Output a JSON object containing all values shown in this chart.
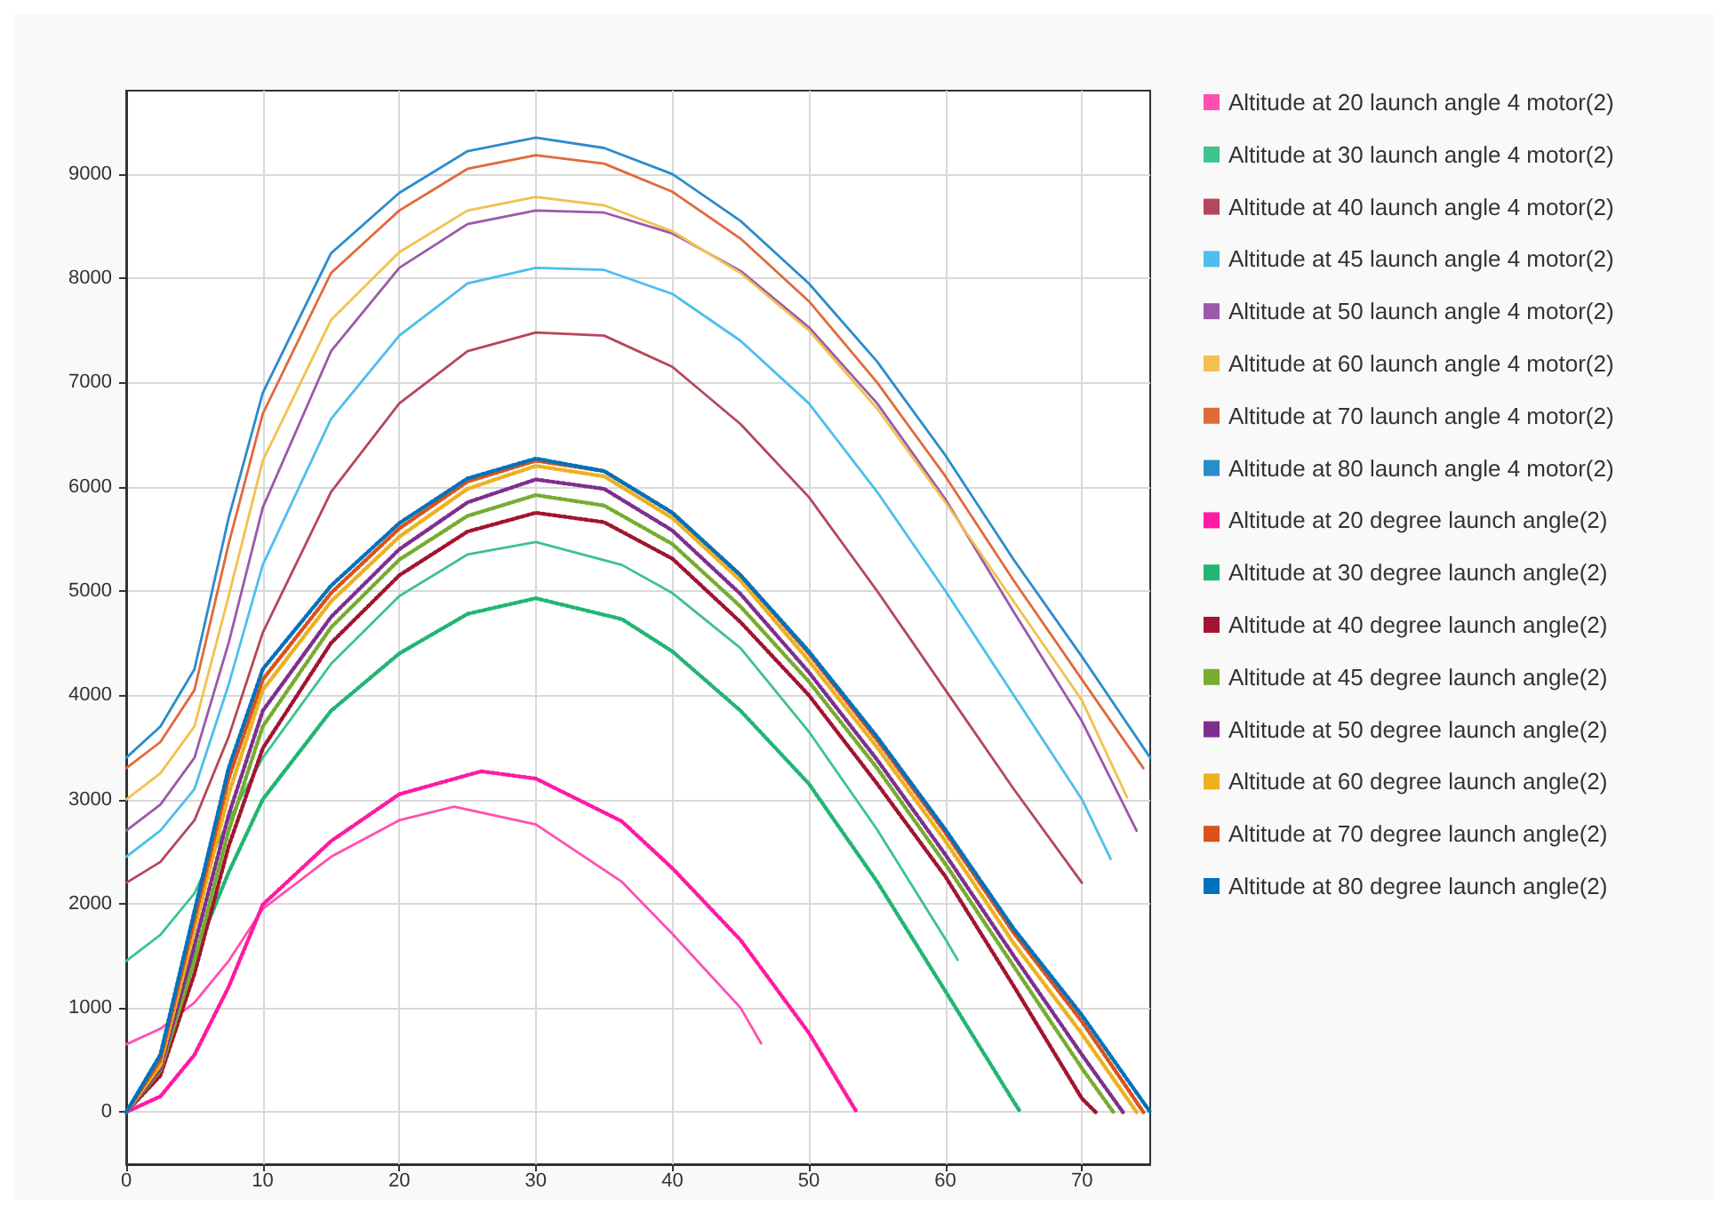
{
  "chart_data": {
    "type": "line",
    "xlim": [
      0,
      75
    ],
    "xticks": [
      0,
      10,
      20,
      30,
      40,
      50,
      60,
      70
    ],
    "ylim": [
      -500,
      9800
    ],
    "yticks": [
      0,
      1000,
      2000,
      3000,
      4000,
      5000,
      6000,
      7000,
      8000,
      9000
    ],
    "grid": true,
    "legend": "right",
    "marker": "none",
    "series": [
      {
        "name": "Altitude at 20 launch angle 4 motor(2)",
        "color": "#ff4fb0",
        "line_style": "solid",
        "x": [
          0,
          2.5,
          5,
          7.5,
          10,
          15,
          20,
          24,
          30,
          36.3,
          40,
          45,
          46.5
        ],
        "values": [
          650,
          800,
          1050,
          1450,
          1950,
          2450,
          2800,
          2930,
          2760,
          2210,
          1710,
          1000,
          660
        ]
      },
      {
        "name": "Altitude at 30 launch angle 4 motor(2)",
        "color": "#3cc48a",
        "line_style": "solid",
        "x": [
          0,
          2.5,
          5,
          7.5,
          10,
          15,
          20,
          25,
          30,
          36.3,
          40,
          45,
          50,
          55,
          60,
          60.9
        ],
        "values": [
          1450,
          1700,
          2100,
          2800,
          3400,
          4300,
          4950,
          5350,
          5470,
          5250,
          4980,
          4450,
          3650,
          2710,
          1660,
          1460
        ]
      },
      {
        "name": "Altitude at 40 launch angle 4 motor(2)",
        "color": "#b5475a",
        "line_style": "solid",
        "x": [
          0,
          2.5,
          5,
          7.5,
          10,
          15,
          20,
          25,
          30,
          35,
          40,
          45,
          50,
          55,
          60,
          65,
          70
        ],
        "values": [
          2200,
          2400,
          2800,
          3600,
          4600,
          5950,
          6800,
          7300,
          7480,
          7450,
          7150,
          6600,
          5900,
          5000,
          4050,
          3100,
          2200
        ]
      },
      {
        "name": "Altitude at 45 launch angle 4 motor(2)",
        "color": "#4dbeee",
        "line_style": "solid",
        "x": [
          0,
          2.5,
          5,
          7.5,
          10,
          15,
          20,
          25,
          30,
          35,
          40,
          45,
          50,
          55,
          60,
          65,
          70,
          72.1
        ],
        "values": [
          2450,
          2700,
          3100,
          4100,
          5250,
          6650,
          7450,
          7950,
          8100,
          8080,
          7850,
          7400,
          6800,
          5950,
          5000,
          4000,
          3000,
          2430
        ]
      },
      {
        "name": "Altitude at 50 launch angle 4 motor(2)",
        "color": "#9b59a8",
        "line_style": "solid",
        "x": [
          0,
          2.5,
          5,
          7.5,
          10,
          15,
          20,
          25,
          30,
          35,
          40,
          45,
          50,
          55,
          60,
          65,
          70,
          74
        ],
        "values": [
          2700,
          2950,
          3400,
          4500,
          5800,
          7300,
          8100,
          8520,
          8650,
          8630,
          8430,
          8070,
          7530,
          6800,
          5880,
          4800,
          3750,
          2700
        ]
      },
      {
        "name": "Altitude at 60 launch angle 4 motor(2)",
        "color": "#f2c14e",
        "line_style": "solid",
        "x": [
          0,
          2.5,
          5,
          7.5,
          10,
          15,
          20,
          25,
          30,
          35,
          40,
          45,
          50,
          55,
          60,
          65,
          70,
          73.3
        ],
        "values": [
          3000,
          3250,
          3700,
          4950,
          6250,
          7600,
          8250,
          8650,
          8780,
          8700,
          8450,
          8050,
          7500,
          6750,
          5850,
          4900,
          3950,
          3020
        ]
      },
      {
        "name": "Altitude at 70 launch angle 4 motor(2)",
        "color": "#e06a3c",
        "line_style": "solid",
        "x": [
          0,
          2.5,
          5,
          7.5,
          10,
          15,
          20,
          25,
          30,
          35,
          40,
          45,
          50,
          55,
          60,
          65,
          70,
          74.5
        ],
        "values": [
          3300,
          3550,
          4050,
          5450,
          6700,
          8050,
          8650,
          9050,
          9180,
          9100,
          8830,
          8380,
          7780,
          7000,
          6100,
          5100,
          4150,
          3300
        ]
      },
      {
        "name": "Altitude at 80 launch angle 4 motor(2)",
        "color": "#2b8ccc",
        "line_style": "solid",
        "x": [
          0,
          2.5,
          5,
          7.5,
          10,
          15,
          20,
          25,
          30,
          35,
          40,
          45,
          50,
          55,
          60,
          65,
          70,
          75
        ],
        "values": [
          3400,
          3700,
          4250,
          5700,
          6900,
          8240,
          8820,
          9220,
          9350,
          9250,
          9000,
          8550,
          7950,
          7200,
          6300,
          5300,
          4370,
          3400
        ]
      },
      {
        "name": "Altitude at 20 degree launch angle(2)",
        "color": "#ff1aa3",
        "line_style": "dotted",
        "x": [
          0,
          2.5,
          5,
          7.5,
          10,
          15,
          20,
          26,
          30,
          36.3,
          40,
          45,
          50,
          53.5
        ],
        "values": [
          0,
          150,
          550,
          1200,
          1990,
          2600,
          3050,
          3270,
          3200,
          2790,
          2340,
          1650,
          760,
          0
        ]
      },
      {
        "name": "Altitude at 30 degree launch angle(2)",
        "color": "#22b573",
        "line_style": "dotted",
        "x": [
          0,
          2.5,
          5,
          7.5,
          10,
          15,
          20,
          25,
          30,
          36.3,
          40,
          45,
          50,
          55,
          60,
          65,
          65.5
        ],
        "values": [
          0,
          400,
          1500,
          2300,
          3000,
          3850,
          4400,
          4780,
          4930,
          4730,
          4420,
          3850,
          3150,
          2210,
          1160,
          100,
          0
        ]
      },
      {
        "name": "Altitude at 40 degree launch angle(2)",
        "color": "#a2142f",
        "line_style": "dotted",
        "x": [
          0,
          2.5,
          5,
          7.5,
          10,
          15,
          20,
          25,
          30,
          35,
          40,
          45,
          50,
          55,
          60,
          65,
          70,
          71
        ],
        "values": [
          0,
          350,
          1330,
          2550,
          3490,
          4500,
          5150,
          5570,
          5750,
          5660,
          5310,
          4700,
          4000,
          3150,
          2260,
          1210,
          130,
          0
        ]
      },
      {
        "name": "Altitude at 45 degree launch angle(2)",
        "color": "#77ac30",
        "line_style": "dotted",
        "x": [
          0,
          2.5,
          5,
          7.5,
          10,
          15,
          20,
          25,
          30,
          35,
          40,
          45,
          50,
          55,
          60,
          65,
          70,
          72.3
        ],
        "values": [
          0,
          400,
          1450,
          2700,
          3700,
          4650,
          5300,
          5720,
          5920,
          5820,
          5450,
          4850,
          4130,
          3300,
          2380,
          1400,
          420,
          0
        ]
      },
      {
        "name": "Altitude at 50 degree launch angle(2)",
        "color": "#7e2f8e",
        "line_style": "dotted",
        "x": [
          0,
          2.5,
          5,
          7.5,
          10,
          15,
          20,
          25,
          30,
          35,
          40,
          45,
          50,
          55,
          60,
          65,
          70,
          73
        ],
        "values": [
          0,
          420,
          1600,
          2850,
          3850,
          4750,
          5400,
          5850,
          6070,
          5980,
          5580,
          4970,
          4220,
          3380,
          2470,
          1500,
          550,
          0
        ]
      },
      {
        "name": "Altitude at 60 degree launch angle(2)",
        "color": "#edb120",
        "line_style": "dotted",
        "x": [
          0,
          2.5,
          5,
          7.5,
          10,
          15,
          20,
          25,
          30,
          35,
          40,
          45,
          50,
          55,
          60,
          65,
          70,
          74
        ],
        "values": [
          0,
          450,
          1750,
          3050,
          4050,
          4900,
          5520,
          5980,
          6200,
          6100,
          5700,
          5100,
          4330,
          3500,
          2600,
          1620,
          750,
          0
        ]
      },
      {
        "name": "Altitude at 70 degree launch angle(2)",
        "color": "#d95319",
        "line_style": "dotted",
        "x": [
          0,
          2.5,
          5,
          7.5,
          10,
          15,
          20,
          25,
          30,
          35,
          40,
          45,
          50,
          55,
          60,
          65,
          70,
          74.5
        ],
        "values": [
          0,
          500,
          1850,
          3200,
          4150,
          4980,
          5600,
          6050,
          6250,
          6150,
          5750,
          5150,
          4400,
          3570,
          2680,
          1720,
          870,
          0
        ]
      },
      {
        "name": "Altitude at 80 degree launch angle(2)",
        "color": "#0072bd",
        "line_style": "dotted",
        "x": [
          0,
          2.5,
          5,
          7.5,
          10,
          15,
          20,
          25,
          30,
          35,
          40,
          45,
          50,
          55,
          60,
          65,
          70,
          75
        ],
        "values": [
          0,
          550,
          1930,
          3300,
          4250,
          5050,
          5650,
          6080,
          6270,
          6150,
          5750,
          5150,
          4420,
          3600,
          2710,
          1760,
          930,
          0
        ]
      }
    ]
  }
}
